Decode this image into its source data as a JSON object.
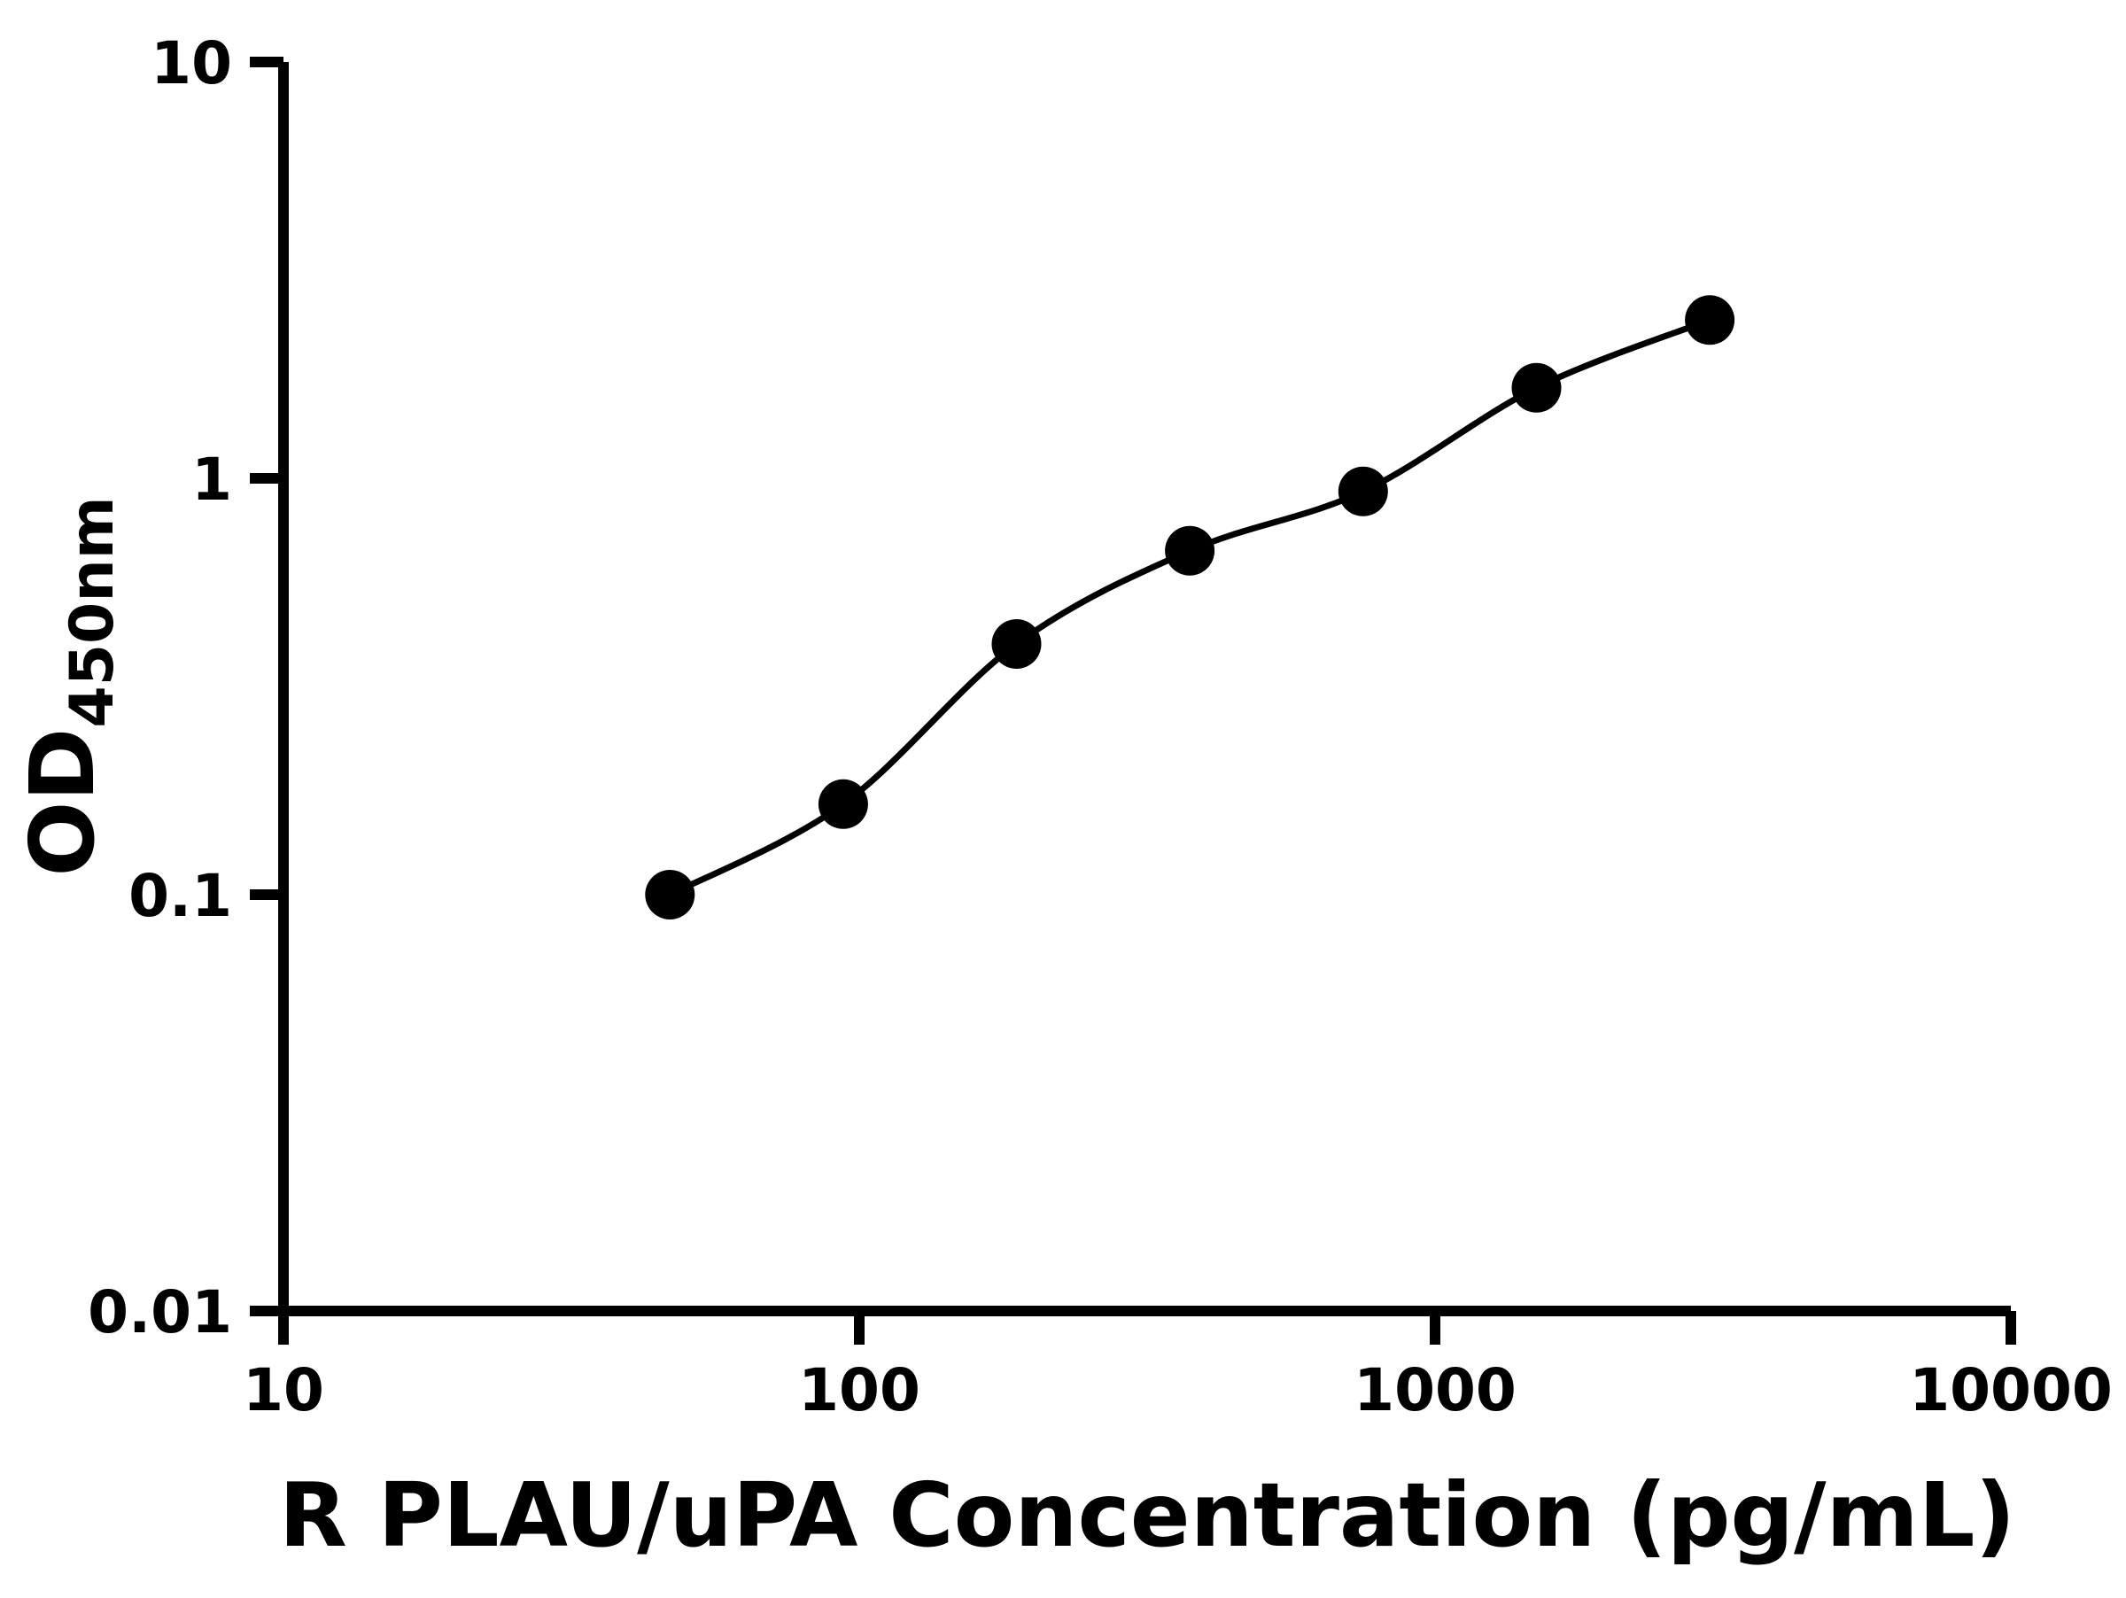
{
  "page": {
    "background_color": "#ffffff"
  },
  "chart_data": {
    "type": "scatter",
    "title": "",
    "xlabel": "R PLAU/uPA Concentration (pg/mL)",
    "ylabel": "OD450nm",
    "ylabel_main": "OD",
    "ylabel_sub": "450nm",
    "x_scale": "log",
    "y_scale": "log",
    "xlim": [
      10,
      10000
    ],
    "ylim": [
      0.01,
      10
    ],
    "x_ticks": [
      10,
      100,
      1000,
      10000
    ],
    "x_tick_labels": [
      "10",
      "100",
      "1000",
      "10000"
    ],
    "y_ticks": [
      10,
      1,
      0.1,
      0.01
    ],
    "y_tick_labels": [
      "10",
      "1",
      "0.1",
      "0.01"
    ],
    "grid": false,
    "legend": null,
    "axis_color": "#000000",
    "curve_color": "#000000",
    "marker_color": "#000000",
    "points": [
      {
        "x": 46.9,
        "y": 0.1
      },
      {
        "x": 93.8,
        "y": 0.165
      },
      {
        "x": 187.5,
        "y": 0.4
      },
      {
        "x": 375,
        "y": 0.67
      },
      {
        "x": 750,
        "y": 0.93
      },
      {
        "x": 1500,
        "y": 1.65
      },
      {
        "x": 3000,
        "y": 2.4
      }
    ]
  }
}
